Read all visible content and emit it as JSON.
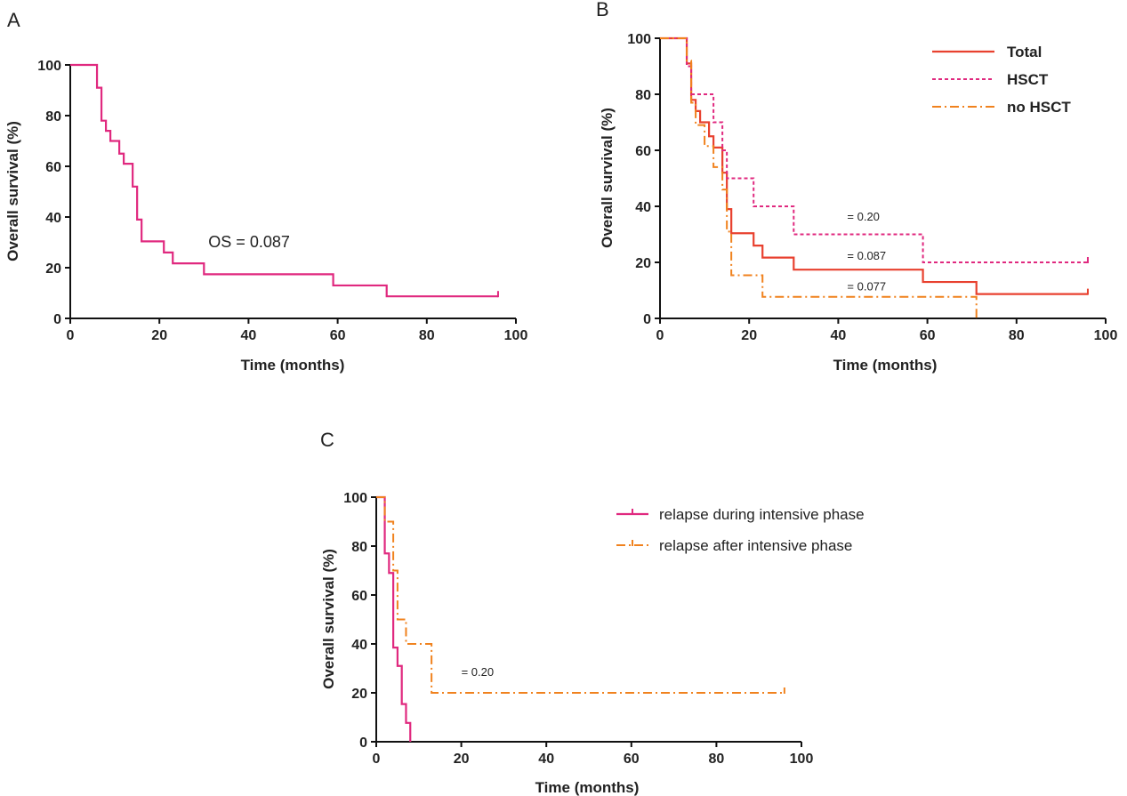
{
  "chart_data": [
    {
      "panel": "A",
      "type": "line",
      "xlabel": "Time (months)",
      "ylabel": "Overall survival (%)",
      "xlim": [
        0,
        100
      ],
      "ylim": [
        0,
        100
      ],
      "xticks": [
        0,
        20,
        40,
        60,
        80,
        100
      ],
      "yticks": [
        0,
        20,
        40,
        60,
        80,
        100
      ],
      "legend": [],
      "annotations": [
        {
          "text": "OS = 0.087",
          "x": 31,
          "y": 28
        }
      ],
      "series": [
        {
          "color": "#e0297f",
          "dash": "solid",
          "step_x": [
            0,
            6,
            7,
            8,
            9,
            11,
            12,
            14,
            15,
            16,
            21,
            23,
            30,
            59,
            71,
            96
          ],
          "step_y": [
            100,
            91,
            78,
            74,
            70,
            65,
            61,
            52,
            39,
            30.4,
            26,
            21.7,
            17.4,
            13,
            8.7,
            8.7
          ],
          "censor_x": [
            96
          ]
        }
      ]
    },
    {
      "panel": "B",
      "type": "line",
      "xlabel": "Time (months)",
      "ylabel": "Overall survival (%)",
      "xlim": [
        0,
        100
      ],
      "ylim": [
        0,
        100
      ],
      "xticks": [
        0,
        20,
        40,
        60,
        80,
        100
      ],
      "yticks": [
        0,
        20,
        40,
        60,
        80,
        100
      ],
      "legend": [
        "Total",
        "HSCT",
        "no HSCT"
      ],
      "legend_position": "top-right",
      "annotations": [
        {
          "text": "= 0.20",
          "x": 42,
          "y": 35
        },
        {
          "text": "= 0.087",
          "x": 42,
          "y": 21
        },
        {
          "text": "= 0.077",
          "x": 42,
          "y": 10
        }
      ],
      "series": [
        {
          "name": "Total",
          "color": "#e8412f",
          "dash": "solid",
          "width": 2.2,
          "step_x": [
            0,
            6,
            7,
            8,
            9,
            11,
            12,
            14,
            15,
            16,
            21,
            23,
            30,
            59,
            71,
            96
          ],
          "step_y": [
            100,
            91,
            78,
            74,
            70,
            65,
            61,
            52,
            39,
            30.4,
            26,
            21.7,
            17.4,
            13,
            8.7,
            8.7
          ],
          "censor_x": [
            96
          ]
        },
        {
          "name": "HSCT",
          "color": "#e0297f",
          "dash": "4,3",
          "width": 2,
          "step_x": [
            0,
            6,
            7,
            8,
            12,
            13,
            14,
            15,
            21,
            30,
            59,
            96
          ],
          "step_y": [
            100,
            90,
            80,
            80,
            70,
            70,
            60,
            50,
            40,
            30,
            20,
            20
          ],
          "censor_x": [
            96
          ]
        },
        {
          "name": "no HSCT",
          "color": "#f0821e",
          "dash": "10,4,2,4",
          "width": 2,
          "step_x": [
            0,
            6,
            7,
            8,
            10,
            12,
            14,
            15,
            16,
            23,
            71
          ],
          "step_y": [
            100,
            92,
            77,
            69,
            61.5,
            54,
            46,
            31,
            15.4,
            7.7,
            0
          ],
          "censor_x": []
        }
      ]
    },
    {
      "panel": "C",
      "type": "line",
      "xlabel": "Time (months)",
      "ylabel": "Overall survival (%)",
      "xlim": [
        0,
        100
      ],
      "ylim": [
        0,
        100
      ],
      "xticks": [
        0,
        20,
        40,
        60,
        80,
        100
      ],
      "yticks": [
        0,
        20,
        40,
        60,
        80,
        100
      ],
      "legend": [
        "relapse during intensive phase",
        "relapse after intensive phase"
      ],
      "legend_position": "top-right",
      "annotations": [
        {
          "text": "= 0.20",
          "x": 20,
          "y": 27
        }
      ],
      "series": [
        {
          "name": "relapse during intensive phase",
          "color": "#e0297f",
          "dash": "solid",
          "width": 2.2,
          "step_x": [
            0,
            2,
            3,
            4,
            5,
            6,
            7,
            8
          ],
          "step_y": [
            100,
            77,
            69,
            38.5,
            31,
            15.4,
            7.7,
            0
          ],
          "censor_x": []
        },
        {
          "name": "relapse after intensive phase",
          "color": "#f0821e",
          "dash": "10,4,2,4",
          "width": 2,
          "step_x": [
            0,
            2,
            4,
            5,
            7,
            13,
            96
          ],
          "step_y": [
            100,
            90,
            70,
            50,
            40,
            20,
            20
          ],
          "censor_x": [
            96
          ]
        }
      ]
    }
  ]
}
